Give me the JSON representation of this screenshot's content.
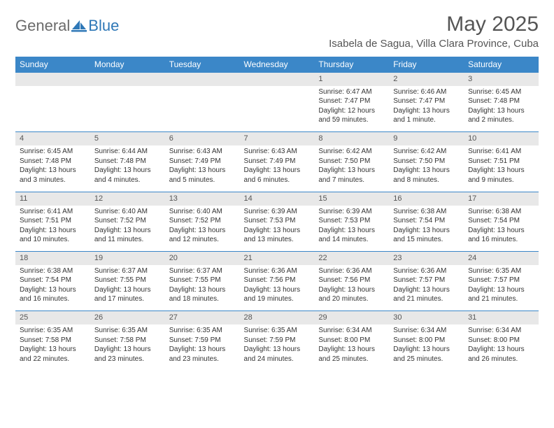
{
  "logo": {
    "text1": "General",
    "text2": "Blue"
  },
  "title": "May 2025",
  "location": "Isabela de Sagua, Villa Clara Province, Cuba",
  "colors": {
    "header_bg": "#3b87c8",
    "header_text": "#ffffff",
    "daynum_bg": "#e8e8e8",
    "border_top": "#3b87c8",
    "text": "#333333",
    "title_text": "#555555",
    "logo_gray": "#6b6b6b",
    "logo_blue": "#2f78b7"
  },
  "day_headers": [
    "Sunday",
    "Monday",
    "Tuesday",
    "Wednesday",
    "Thursday",
    "Friday",
    "Saturday"
  ],
  "weeks": [
    {
      "nums": [
        "",
        "",
        "",
        "",
        "1",
        "2",
        "3"
      ],
      "cells": [
        null,
        null,
        null,
        null,
        {
          "sunrise": "Sunrise: 6:47 AM",
          "sunset": "Sunset: 7:47 PM",
          "daylight": "Daylight: 12 hours and 59 minutes."
        },
        {
          "sunrise": "Sunrise: 6:46 AM",
          "sunset": "Sunset: 7:47 PM",
          "daylight": "Daylight: 13 hours and 1 minute."
        },
        {
          "sunrise": "Sunrise: 6:45 AM",
          "sunset": "Sunset: 7:48 PM",
          "daylight": "Daylight: 13 hours and 2 minutes."
        }
      ]
    },
    {
      "nums": [
        "4",
        "5",
        "6",
        "7",
        "8",
        "9",
        "10"
      ],
      "cells": [
        {
          "sunrise": "Sunrise: 6:45 AM",
          "sunset": "Sunset: 7:48 PM",
          "daylight": "Daylight: 13 hours and 3 minutes."
        },
        {
          "sunrise": "Sunrise: 6:44 AM",
          "sunset": "Sunset: 7:48 PM",
          "daylight": "Daylight: 13 hours and 4 minutes."
        },
        {
          "sunrise": "Sunrise: 6:43 AM",
          "sunset": "Sunset: 7:49 PM",
          "daylight": "Daylight: 13 hours and 5 minutes."
        },
        {
          "sunrise": "Sunrise: 6:43 AM",
          "sunset": "Sunset: 7:49 PM",
          "daylight": "Daylight: 13 hours and 6 minutes."
        },
        {
          "sunrise": "Sunrise: 6:42 AM",
          "sunset": "Sunset: 7:50 PM",
          "daylight": "Daylight: 13 hours and 7 minutes."
        },
        {
          "sunrise": "Sunrise: 6:42 AM",
          "sunset": "Sunset: 7:50 PM",
          "daylight": "Daylight: 13 hours and 8 minutes."
        },
        {
          "sunrise": "Sunrise: 6:41 AM",
          "sunset": "Sunset: 7:51 PM",
          "daylight": "Daylight: 13 hours and 9 minutes."
        }
      ]
    },
    {
      "nums": [
        "11",
        "12",
        "13",
        "14",
        "15",
        "16",
        "17"
      ],
      "cells": [
        {
          "sunrise": "Sunrise: 6:41 AM",
          "sunset": "Sunset: 7:51 PM",
          "daylight": "Daylight: 13 hours and 10 minutes."
        },
        {
          "sunrise": "Sunrise: 6:40 AM",
          "sunset": "Sunset: 7:52 PM",
          "daylight": "Daylight: 13 hours and 11 minutes."
        },
        {
          "sunrise": "Sunrise: 6:40 AM",
          "sunset": "Sunset: 7:52 PM",
          "daylight": "Daylight: 13 hours and 12 minutes."
        },
        {
          "sunrise": "Sunrise: 6:39 AM",
          "sunset": "Sunset: 7:53 PM",
          "daylight": "Daylight: 13 hours and 13 minutes."
        },
        {
          "sunrise": "Sunrise: 6:39 AM",
          "sunset": "Sunset: 7:53 PM",
          "daylight": "Daylight: 13 hours and 14 minutes."
        },
        {
          "sunrise": "Sunrise: 6:38 AM",
          "sunset": "Sunset: 7:54 PM",
          "daylight": "Daylight: 13 hours and 15 minutes."
        },
        {
          "sunrise": "Sunrise: 6:38 AM",
          "sunset": "Sunset: 7:54 PM",
          "daylight": "Daylight: 13 hours and 16 minutes."
        }
      ]
    },
    {
      "nums": [
        "18",
        "19",
        "20",
        "21",
        "22",
        "23",
        "24"
      ],
      "cells": [
        {
          "sunrise": "Sunrise: 6:38 AM",
          "sunset": "Sunset: 7:54 PM",
          "daylight": "Daylight: 13 hours and 16 minutes."
        },
        {
          "sunrise": "Sunrise: 6:37 AM",
          "sunset": "Sunset: 7:55 PM",
          "daylight": "Daylight: 13 hours and 17 minutes."
        },
        {
          "sunrise": "Sunrise: 6:37 AM",
          "sunset": "Sunset: 7:55 PM",
          "daylight": "Daylight: 13 hours and 18 minutes."
        },
        {
          "sunrise": "Sunrise: 6:36 AM",
          "sunset": "Sunset: 7:56 PM",
          "daylight": "Daylight: 13 hours and 19 minutes."
        },
        {
          "sunrise": "Sunrise: 6:36 AM",
          "sunset": "Sunset: 7:56 PM",
          "daylight": "Daylight: 13 hours and 20 minutes."
        },
        {
          "sunrise": "Sunrise: 6:36 AM",
          "sunset": "Sunset: 7:57 PM",
          "daylight": "Daylight: 13 hours and 21 minutes."
        },
        {
          "sunrise": "Sunrise: 6:35 AM",
          "sunset": "Sunset: 7:57 PM",
          "daylight": "Daylight: 13 hours and 21 minutes."
        }
      ]
    },
    {
      "nums": [
        "25",
        "26",
        "27",
        "28",
        "29",
        "30",
        "31"
      ],
      "cells": [
        {
          "sunrise": "Sunrise: 6:35 AM",
          "sunset": "Sunset: 7:58 PM",
          "daylight": "Daylight: 13 hours and 22 minutes."
        },
        {
          "sunrise": "Sunrise: 6:35 AM",
          "sunset": "Sunset: 7:58 PM",
          "daylight": "Daylight: 13 hours and 23 minutes."
        },
        {
          "sunrise": "Sunrise: 6:35 AM",
          "sunset": "Sunset: 7:59 PM",
          "daylight": "Daylight: 13 hours and 23 minutes."
        },
        {
          "sunrise": "Sunrise: 6:35 AM",
          "sunset": "Sunset: 7:59 PM",
          "daylight": "Daylight: 13 hours and 24 minutes."
        },
        {
          "sunrise": "Sunrise: 6:34 AM",
          "sunset": "Sunset: 8:00 PM",
          "daylight": "Daylight: 13 hours and 25 minutes."
        },
        {
          "sunrise": "Sunrise: 6:34 AM",
          "sunset": "Sunset: 8:00 PM",
          "daylight": "Daylight: 13 hours and 25 minutes."
        },
        {
          "sunrise": "Sunrise: 6:34 AM",
          "sunset": "Sunset: 8:00 PM",
          "daylight": "Daylight: 13 hours and 26 minutes."
        }
      ]
    }
  ]
}
